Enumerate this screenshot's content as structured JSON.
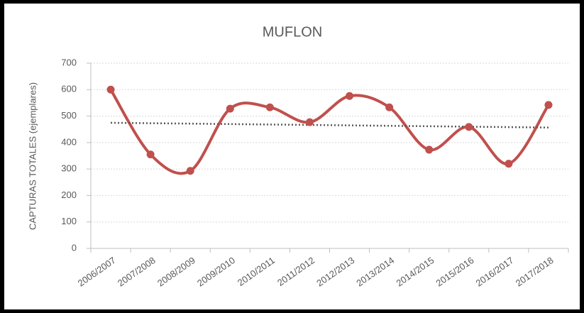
{
  "chart_data": {
    "type": "line",
    "title": "MUFLON",
    "y_label": "CAPTURAS TOTALES (ejemplares)",
    "categories": [
      "2006/2007",
      "2007/2008",
      "2008/2009",
      "2009/2010",
      "2010/2011",
      "2011/2012",
      "2012/2013",
      "2013/2014",
      "2014/2015",
      "2015/2016",
      "2016/2017",
      "2017/2018"
    ],
    "series": [
      {
        "name": "MUFLON",
        "color": "#c0504d",
        "values": [
          600,
          355,
          293,
          528,
          533,
          477,
          576,
          533,
          373,
          459,
          320,
          542
        ]
      }
    ],
    "ylim": [
      0,
      700
    ],
    "yticks": [
      0,
      100,
      200,
      300,
      400,
      500,
      600,
      700
    ],
    "grid": true,
    "smooth": true,
    "trendline": {
      "type": "linear",
      "color": "#595959"
    }
  }
}
